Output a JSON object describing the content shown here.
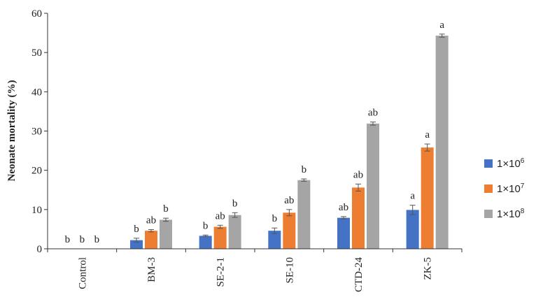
{
  "chart_data": {
    "type": "bar",
    "ylabel": "Neonate mortality (%)",
    "xlabel": "",
    "ylim": [
      0,
      60
    ],
    "yticks": [
      0,
      10,
      20,
      30,
      40,
      50,
      60
    ],
    "grid": false,
    "legend_position": "right",
    "categories": [
      "Control",
      "BM-3",
      "SE-2-1",
      "SE-10",
      "CTD-24",
      "ZK-5"
    ],
    "series": [
      {
        "name_base": "1×10",
        "name_exp": "6",
        "color": "#4472C4",
        "values": [
          0,
          2.2,
          3.3,
          4.6,
          7.9,
          9.9
        ],
        "errors": [
          0,
          0.5,
          0.2,
          0.7,
          0.3,
          1.2
        ],
        "labels": [
          "b",
          "b",
          "b",
          "b",
          "ab",
          "a"
        ]
      },
      {
        "name_base": "1×10",
        "name_exp": "7",
        "color": "#ED7D31",
        "values": [
          0,
          4.6,
          5.6,
          9.2,
          15.6,
          25.8
        ],
        "errors": [
          0,
          0.3,
          0.4,
          0.8,
          0.9,
          0.9
        ],
        "labels": [
          "b",
          "ab",
          "ab",
          "ab",
          "ab",
          "a"
        ]
      },
      {
        "name_base": "1×10",
        "name_exp": "8",
        "color": "#A5A5A5",
        "values": [
          0,
          7.4,
          8.6,
          17.5,
          31.9,
          54.3
        ],
        "errors": [
          0,
          0.4,
          0.6,
          0.3,
          0.4,
          0.4
        ],
        "labels": [
          "b",
          "b",
          "b",
          "b",
          "ab",
          "a"
        ]
      }
    ]
  }
}
